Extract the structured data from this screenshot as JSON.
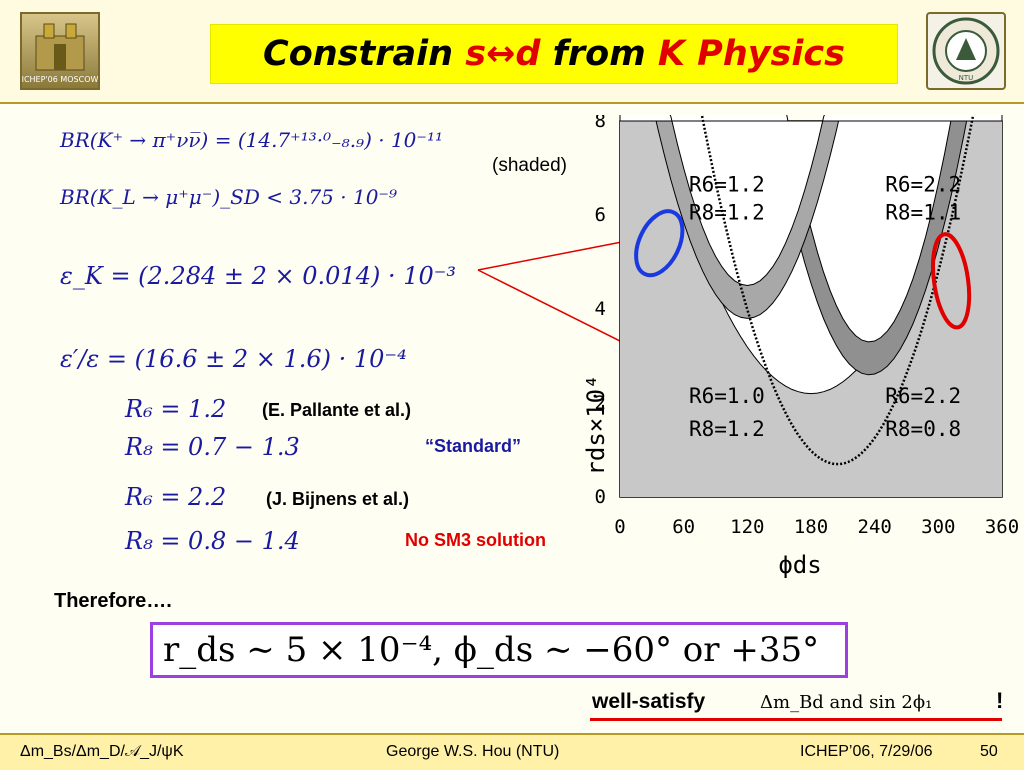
{
  "header": {
    "title_parts": [
      "Constrain ",
      "s",
      " ↔ ",
      "d",
      " from ",
      "K Physics"
    ],
    "logo_left_text": "ICHEP'06 MOSCOW",
    "logo_right_text": "NTU"
  },
  "equations": {
    "br_kplus": "BR(K⁺ → π⁺νν̅) = (14.7⁺¹³·⁰₋₈.₉) · 10⁻¹¹",
    "br_kl": "BR(K_L → μ⁺μ⁻)_SD < 3.75 · 10⁻⁹",
    "eps_k": "ε_K = (2.284 ± 2 × 0.014) · 10⁻³",
    "eps_prime": "ε′/ε = (16.6 ± 2 × 1.6) · 10⁻⁴",
    "r6_a": "R₆ = 1.2",
    "r8_a": "R₈ = 0.7 − 1.3",
    "r6_b": "R₆ = 2.2",
    "r8_b": "R₈ = 0.8 − 1.4"
  },
  "notes": {
    "shaded": "(shaded)",
    "pallante": "(E. Pallante et al.)",
    "standard": "“Standard”",
    "bijnens": "(J. Bijnens et al.)",
    "no_sm3": "No SM3 solution"
  },
  "chart_data": {
    "type": "area",
    "xlabel": "ϕds",
    "ylabel": "rds×10⁴",
    "x_ticks": [
      "0",
      "60",
      "120",
      "180",
      "240",
      "300",
      "360"
    ],
    "y_ticks": [
      "0",
      "2",
      "4",
      "6",
      "8"
    ],
    "xlim": [
      0,
      360
    ],
    "ylim": [
      0,
      8
    ],
    "labels": [
      {
        "text": "R6=1.2",
        "x": 65,
        "y": 6.5
      },
      {
        "text": "R8=1.2",
        "x": 65,
        "y": 5.9
      },
      {
        "text": "R6=2.2",
        "x": 250,
        "y": 6.5
      },
      {
        "text": "R8=1.1",
        "x": 250,
        "y": 5.9
      },
      {
        "text": "R6=1.0",
        "x": 65,
        "y": 2.0
      },
      {
        "text": "R8=1.2",
        "x": 65,
        "y": 1.3
      },
      {
        "text": "R6=2.2",
        "x": 250,
        "y": 2.0
      },
      {
        "text": "R8=0.8",
        "x": 250,
        "y": 1.3
      }
    ]
  },
  "therefore": "Therefore….",
  "result": "r_ds ∼ 5 × 10⁻⁴,   ϕ_ds ∼ −60° or +35°",
  "well_satisfy": {
    "label": "well-satisfy",
    "formula": "Δm_Bd and sin 2ϕ₁",
    "bang": "!"
  },
  "footer": {
    "left": "Δm_Bs/Δm_D/𝒜_J/ψK",
    "center": "George W.S. Hou (NTU)",
    "right": "ICHEP’06, 7/29/06",
    "page": "50"
  },
  "colors": {
    "title_bg": "#ffff00",
    "accent_red": "#e00000",
    "box_purple": "#9b3fe0",
    "footer_bg": "#fff2a8"
  }
}
